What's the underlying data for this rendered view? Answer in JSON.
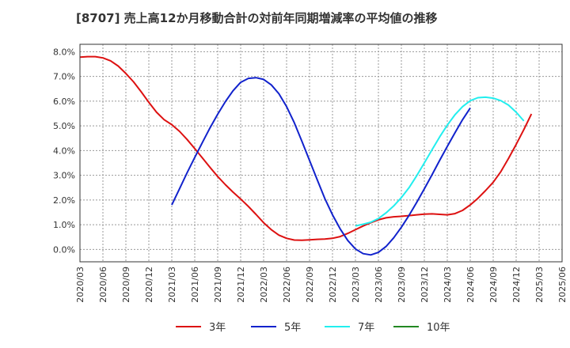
{
  "chart_data": {
    "type": "line",
    "title": "[8707]  売上高12か月移動合計の対前年同期増減率の平均値の推移",
    "xlabel": "",
    "ylabel": "",
    "ylim": [
      -0.5,
      8.3
    ],
    "y_ticks": [
      0,
      1,
      2,
      3,
      4,
      5,
      6,
      7,
      8
    ],
    "y_tick_labels": [
      "0.0%",
      "1.0%",
      "2.0%",
      "3.0%",
      "4.0%",
      "5.0%",
      "6.0%",
      "7.0%",
      "8.0%"
    ],
    "x_tick_labels": [
      "2020/03",
      "2020/06",
      "2020/09",
      "2020/12",
      "2021/03",
      "2021/06",
      "2021/09",
      "2021/12",
      "2022/03",
      "2022/06",
      "2022/09",
      "2022/12",
      "2023/03",
      "2023/06",
      "2023/09",
      "2023/12",
      "2024/03",
      "2024/06",
      "2024/09",
      "2024/12",
      "2025/03",
      "2025/06"
    ],
    "grid": true,
    "legend_position": "bottom",
    "series": [
      {
        "name": "3年",
        "color": "#dd1111",
        "start_index": 0,
        "values": [
          7.78,
          7.8,
          7.8,
          7.75,
          7.63,
          7.42,
          7.12,
          6.78,
          6.38,
          5.95,
          5.55,
          5.25,
          5.05,
          4.78,
          4.45,
          4.08,
          3.7,
          3.32,
          2.95,
          2.62,
          2.32,
          2.04,
          1.74,
          1.42,
          1.08,
          0.8,
          0.58,
          0.45,
          0.38,
          0.37,
          0.39,
          0.41,
          0.42,
          0.45,
          0.52,
          0.65,
          0.8,
          0.95,
          1.08,
          1.2,
          1.28,
          1.32,
          1.34,
          1.37,
          1.4,
          1.43,
          1.44,
          1.42,
          1.4,
          1.45,
          1.58,
          1.8,
          2.07,
          2.38,
          2.72,
          3.15,
          3.68,
          4.25,
          4.85,
          5.48
        ]
      },
      {
        "name": "5年",
        "color": "#1122cc",
        "start_index": 12,
        "values": [
          1.8,
          2.45,
          3.1,
          3.72,
          4.33,
          4.92,
          5.47,
          5.98,
          6.42,
          6.76,
          6.92,
          6.95,
          6.88,
          6.66,
          6.3,
          5.78,
          5.13,
          4.38,
          3.6,
          2.82,
          2.06,
          1.4,
          0.83,
          0.36,
          0.02,
          -0.17,
          -0.22,
          -0.12,
          0.12,
          0.47,
          0.9,
          1.38,
          1.9,
          2.45,
          3.02,
          3.6,
          4.17,
          4.72,
          5.25,
          5.72
        ]
      },
      {
        "name": "7年",
        "color": "#22eeee",
        "start_index": 36,
        "values": [
          0.95,
          1.02,
          1.1,
          1.25,
          1.48,
          1.76,
          2.1,
          2.5,
          2.98,
          3.5,
          4.03,
          4.55,
          5.03,
          5.45,
          5.78,
          6.02,
          6.14,
          6.16,
          6.12,
          6.02,
          5.84,
          5.55,
          5.2
        ]
      },
      {
        "name": "10年",
        "color": "#228822",
        "start_index": 0,
        "values": []
      }
    ]
  }
}
